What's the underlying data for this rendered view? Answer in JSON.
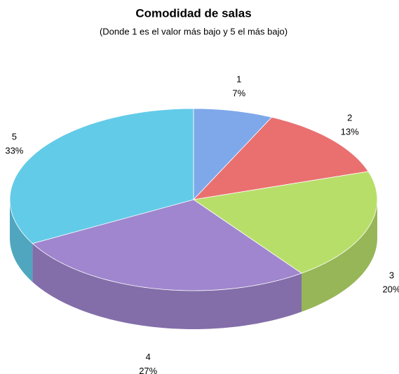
{
  "chart_data": {
    "type": "pie3d",
    "title": "Comodidad de salas",
    "subtitle": "(Donde 1 es el valor más bajo y 5 el más bajo)",
    "categories": [
      "1",
      "2",
      "3",
      "4",
      "5"
    ],
    "values": [
      7,
      13,
      20,
      27,
      33
    ],
    "value_labels": [
      "7%",
      "13%",
      "20%",
      "27%",
      "33%"
    ],
    "colors": [
      "#7ea8ea",
      "#ea7070",
      "#b8de6a",
      "#a086ce",
      "#62cbe8"
    ]
  }
}
